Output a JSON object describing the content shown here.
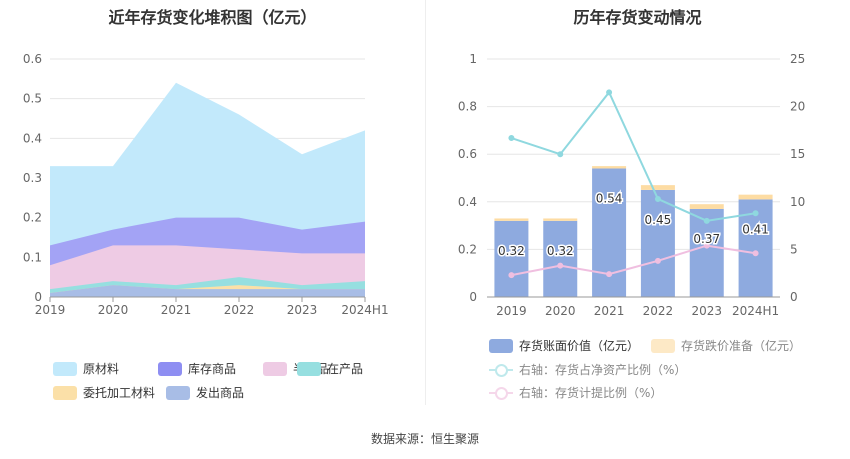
{
  "source_label": "数据来源：恒生聚源",
  "colors": {
    "raw": "#c2e9fb",
    "finished": "#a3a3f5",
    "semi": "#eecbe4",
    "wip": "#96dfe0",
    "entrusted": "#fbe0a8",
    "shipped": "#a8bde6",
    "bar_book": "#8eaadf",
    "bar_reserve": "#fddca3",
    "line_ratio": "#8fd8df",
    "line_provision": "#f0bfe0"
  },
  "chart_data": [
    {
      "type": "area",
      "title": "近年存货变化堆积图（亿元）",
      "categories": [
        "2019",
        "2020",
        "2021",
        "2022",
        "2023",
        "2024H1"
      ],
      "ylim": [
        0,
        0.6
      ],
      "yticks": [
        "0",
        "0.1",
        "0.2",
        "0.3",
        "0.4",
        "0.5",
        "0.6"
      ],
      "stacked_totals": [
        {
          "name": "发出商品",
          "values": [
            0.01,
            0.03,
            0.02,
            0.02,
            0.02,
            0.02
          ]
        },
        {
          "name": "委托加工材料",
          "values": [
            0.01,
            0.03,
            0.02,
            0.03,
            0.02,
            0.02
          ]
        },
        {
          "name": "在产品",
          "values": [
            0.02,
            0.04,
            0.03,
            0.05,
            0.03,
            0.04
          ]
        },
        {
          "name": "半成品",
          "values": [
            0.08,
            0.13,
            0.13,
            0.12,
            0.11,
            0.11
          ]
        },
        {
          "name": "库存商品",
          "values": [
            0.13,
            0.17,
            0.2,
            0.2,
            0.17,
            0.19
          ]
        },
        {
          "name": "原材料",
          "values": [
            0.33,
            0.33,
            0.54,
            0.46,
            0.36,
            0.42
          ]
        }
      ],
      "legend": [
        {
          "name": "原材料",
          "color_key": "raw"
        },
        {
          "name": "库存商品",
          "color_key": "finished"
        },
        {
          "name": "半成品",
          "color_key": "semi"
        },
        {
          "name": "在产品",
          "color_key": "wip"
        },
        {
          "name": "委托加工材料",
          "color_key": "entrusted"
        },
        {
          "name": "发出商品",
          "color_key": "shipped"
        }
      ]
    },
    {
      "type": "bar",
      "title": "历年存货变动情况",
      "categories": [
        "2019",
        "2020",
        "2021",
        "2022",
        "2023",
        "2024H1"
      ],
      "ylim": [
        0,
        1
      ],
      "yticks": [
        "0",
        "0.2",
        "0.4",
        "0.6",
        "0.8",
        "1"
      ],
      "y2lim": [
        0,
        25
      ],
      "y2ticks": [
        "0",
        "5",
        "10",
        "15",
        "20",
        "25"
      ],
      "series": [
        {
          "name": "存货账面价值（亿元）",
          "values": [
            0.32,
            0.32,
            0.54,
            0.45,
            0.37,
            0.41
          ],
          "labels": [
            "0.32",
            "0.32",
            "0.54",
            "0.45",
            "0.37",
            "0.41"
          ]
        },
        {
          "name": "存货跌价准备（亿元）",
          "values": [
            0.01,
            0.01,
            0.01,
            0.02,
            0.02,
            0.02
          ]
        },
        {
          "name": "右轴：存货占净资产比例（%）",
          "axis": "right",
          "values": [
            16.7,
            15.0,
            21.5,
            10.3,
            8.0,
            8.8
          ]
        },
        {
          "name": "右轴：存货计提比例（%）",
          "axis": "right",
          "values": [
            2.3,
            3.3,
            2.4,
            3.8,
            5.4,
            4.6
          ]
        }
      ]
    }
  ]
}
